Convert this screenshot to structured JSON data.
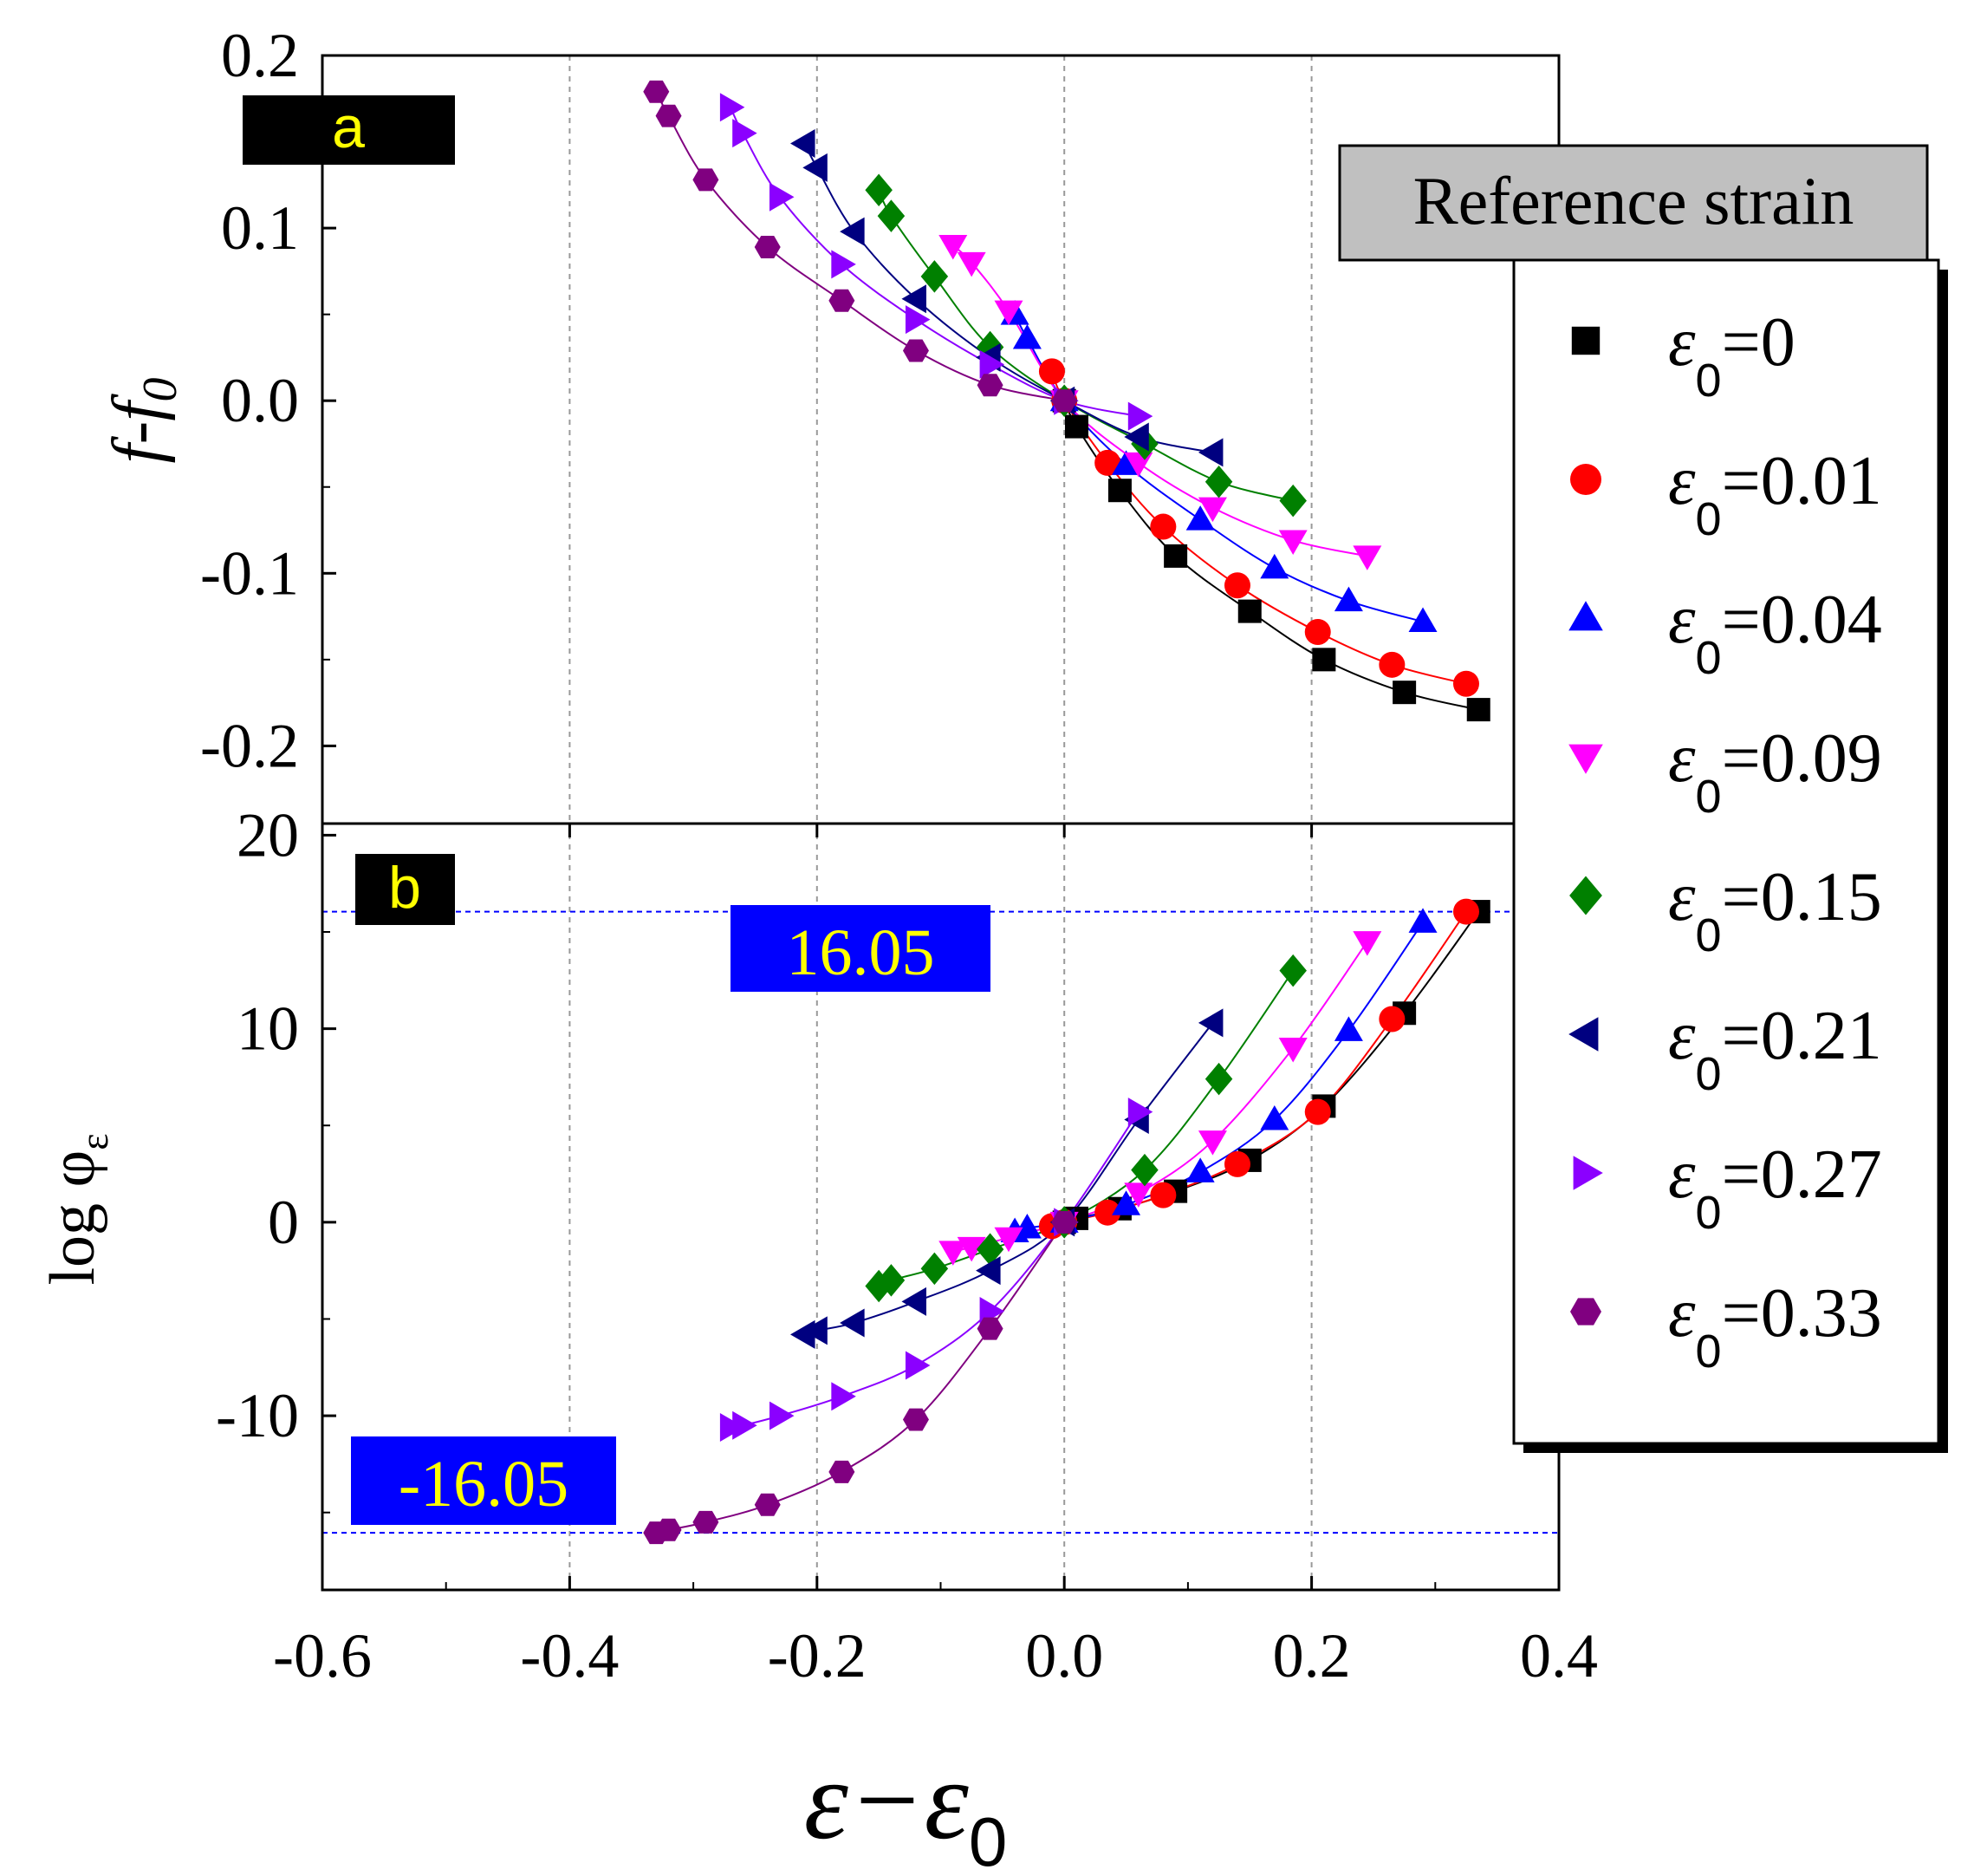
{
  "figure": {
    "xlabel_main": "ε−ε",
    "xlabel_sub": "0",
    "x_tick_labels": [
      "-0.6",
      "-0.4",
      "-0.2",
      "0.0",
      "0.2",
      "0.4"
    ],
    "legend_title": "Reference strain"
  },
  "chart_data": [
    {
      "type": "scatter",
      "panel_label": "a",
      "ylabel": "f-f0",
      "ylabel_main": "f-f",
      "ylabel_sub": "0",
      "xlabel": "ε−ε0",
      "xlim": [
        -0.6,
        0.4
      ],
      "ylim": [
        -0.245,
        0.2
      ],
      "x_ticks": [
        -0.6,
        -0.4,
        -0.2,
        0.0,
        0.2,
        0.4
      ],
      "y_ticks": [
        0.2,
        0.1,
        0.0,
        -0.1,
        -0.2
      ],
      "y_tick_labels": [
        "0.2",
        "0.1",
        "0.0",
        "-0.1",
        "-0.2"
      ],
      "grid": "vertical dashed at x = -0.4, -0.2, 0.0, 0.2",
      "series": [
        {
          "name": "ε0=0",
          "color": "#000000",
          "marker": "square",
          "points": [
            [
              0.0,
              0.0
            ],
            [
              0.01,
              -0.015
            ],
            [
              0.045,
              -0.052
            ],
            [
              0.09,
              -0.09
            ],
            [
              0.15,
              -0.122
            ],
            [
              0.21,
              -0.15
            ],
            [
              0.275,
              -0.169
            ],
            [
              0.335,
              -0.179
            ]
          ]
        },
        {
          "name": "ε0=0.01",
          "color": "#ff0000",
          "marker": "circle",
          "points": [
            [
              -0.01,
              0.017
            ],
            [
              0.0,
              0.0
            ],
            [
              0.035,
              -0.036
            ],
            [
              0.08,
              -0.073
            ],
            [
              0.14,
              -0.107
            ],
            [
              0.205,
              -0.134
            ],
            [
              0.265,
              -0.153
            ],
            [
              0.325,
              -0.164
            ]
          ]
        },
        {
          "name": "ε0=0.04",
          "color": "#0000ff",
          "marker": "triangle-up",
          "points": [
            [
              -0.04,
              0.05
            ],
            [
              -0.03,
              0.036
            ],
            [
              0.0,
              0.0
            ],
            [
              0.05,
              -0.037
            ],
            [
              0.11,
              -0.069
            ],
            [
              0.17,
              -0.097
            ],
            [
              0.23,
              -0.116
            ],
            [
              0.29,
              -0.128
            ]
          ]
        },
        {
          "name": "ε0=0.09",
          "color": "#ff00ff",
          "marker": "triangle-down",
          "points": [
            [
              -0.09,
              0.09
            ],
            [
              -0.075,
              0.08
            ],
            [
              -0.045,
              0.052
            ],
            [
              0.0,
              0.0
            ],
            [
              0.06,
              -0.036
            ],
            [
              0.12,
              -0.062
            ],
            [
              0.185,
              -0.081
            ],
            [
              0.245,
              -0.09
            ]
          ]
        },
        {
          "name": "ε0=0.15",
          "color": "#008000",
          "marker": "diamond",
          "points": [
            [
              -0.15,
              0.122
            ],
            [
              -0.14,
              0.107
            ],
            [
              -0.105,
              0.072
            ],
            [
              -0.06,
              0.031
            ],
            [
              0.0,
              0.0
            ],
            [
              0.065,
              -0.025
            ],
            [
              0.125,
              -0.047
            ],
            [
              0.185,
              -0.058
            ]
          ]
        },
        {
          "name": "ε0=0.21",
          "color": "#000080",
          "marker": "triangle-left",
          "points": [
            [
              -0.21,
              0.149
            ],
            [
              -0.2,
              0.135
            ],
            [
              -0.17,
              0.098
            ],
            [
              -0.12,
              0.059
            ],
            [
              -0.06,
              0.025
            ],
            [
              0.0,
              0.0
            ],
            [
              0.06,
              -0.021
            ],
            [
              0.12,
              -0.03
            ]
          ]
        },
        {
          "name": "ε0=0.27",
          "color": "#8b00ff",
          "marker": "triangle-right",
          "points": [
            [
              -0.27,
              0.17
            ],
            [
              -0.26,
              0.155
            ],
            [
              -0.23,
              0.118
            ],
            [
              -0.18,
              0.079
            ],
            [
              -0.12,
              0.047
            ],
            [
              -0.06,
              0.021
            ],
            [
              0.0,
              0.0
            ],
            [
              0.06,
              -0.009
            ]
          ]
        },
        {
          "name": "ε0=0.33",
          "color": "#800080",
          "marker": "hexagon",
          "points": [
            [
              -0.33,
              0.179
            ],
            [
              -0.32,
              0.165
            ],
            [
              -0.29,
              0.128
            ],
            [
              -0.24,
              0.089
            ],
            [
              -0.18,
              0.058
            ],
            [
              -0.12,
              0.029
            ],
            [
              -0.06,
              0.009
            ],
            [
              0.0,
              0.0
            ]
          ]
        }
      ]
    },
    {
      "type": "scatter",
      "panel_label": "b",
      "ylabel": "log φε",
      "ylabel_main": "log  φ",
      "ylabel_sub": "ε",
      "xlabel": "ε−ε0",
      "xlim": [
        -0.6,
        0.4
      ],
      "ylim": [
        -19,
        20.6
      ],
      "x_ticks": [
        -0.6,
        -0.4,
        -0.2,
        0.0,
        0.2,
        0.4
      ],
      "y_ticks": [
        20,
        10,
        0,
        -10
      ],
      "y_tick_labels": [
        "20",
        "10",
        "0",
        "-10"
      ],
      "grid": "vertical dashed at x = -0.4, -0.2, 0.0, 0.2",
      "annotations": [
        {
          "text": "16.05",
          "y": 16.05
        },
        {
          "text": "-16.05",
          "y": -16.05
        }
      ],
      "series": [
        {
          "name": "ε0=0",
          "color": "#000000",
          "marker": "square",
          "points": [
            [
              0.0,
              0.0
            ],
            [
              0.01,
              0.2
            ],
            [
              0.045,
              0.7
            ],
            [
              0.09,
              1.6
            ],
            [
              0.15,
              3.2
            ],
            [
              0.21,
              6.0
            ],
            [
              0.275,
              10.8
            ],
            [
              0.335,
              16.05
            ]
          ]
        },
        {
          "name": "ε0=0.01",
          "color": "#ff0000",
          "marker": "circle",
          "points": [
            [
              -0.01,
              -0.2
            ],
            [
              0.0,
              0.0
            ],
            [
              0.035,
              0.5
            ],
            [
              0.08,
              1.4
            ],
            [
              0.14,
              3.0
            ],
            [
              0.205,
              5.7
            ],
            [
              0.265,
              10.5
            ],
            [
              0.325,
              16.05
            ]
          ]
        },
        {
          "name": "ε0=0.04",
          "color": "#0000ff",
          "marker": "triangle-up",
          "points": [
            [
              -0.04,
              -0.5
            ],
            [
              -0.03,
              -0.3
            ],
            [
              0.0,
              0.0
            ],
            [
              0.05,
              0.9
            ],
            [
              0.11,
              2.6
            ],
            [
              0.17,
              5.3
            ],
            [
              0.23,
              9.9
            ],
            [
              0.29,
              15.5
            ]
          ]
        },
        {
          "name": "ε0=0.09",
          "color": "#ff00ff",
          "marker": "triangle-down",
          "points": [
            [
              -0.09,
              -1.5
            ],
            [
              -0.075,
              -1.3
            ],
            [
              -0.045,
              -0.8
            ],
            [
              0.0,
              0.0
            ],
            [
              0.06,
              1.5
            ],
            [
              0.12,
              4.2
            ],
            [
              0.185,
              9.0
            ],
            [
              0.245,
              14.5
            ]
          ]
        },
        {
          "name": "ε0=0.15",
          "color": "#008000",
          "marker": "diamond",
          "points": [
            [
              -0.15,
              -3.3
            ],
            [
              -0.14,
              -3.0
            ],
            [
              -0.105,
              -2.4
            ],
            [
              -0.06,
              -1.4
            ],
            [
              0.0,
              0.0
            ],
            [
              0.065,
              2.7
            ],
            [
              0.125,
              7.4
            ],
            [
              0.185,
              13.0
            ]
          ]
        },
        {
          "name": "ε0=0.21",
          "color": "#000080",
          "marker": "triangle-left",
          "points": [
            [
              -0.21,
              -5.8
            ],
            [
              -0.2,
              -5.6
            ],
            [
              -0.17,
              -5.2
            ],
            [
              -0.12,
              -4.1
            ],
            [
              -0.06,
              -2.5
            ],
            [
              0.0,
              0.0
            ],
            [
              0.06,
              5.3
            ],
            [
              0.12,
              10.3
            ]
          ]
        },
        {
          "name": "ε0=0.27",
          "color": "#8b00ff",
          "marker": "triangle-right",
          "points": [
            [
              -0.27,
              -10.6
            ],
            [
              -0.26,
              -10.5
            ],
            [
              -0.23,
              -10.0
            ],
            [
              -0.18,
              -9.0
            ],
            [
              -0.12,
              -7.4
            ],
            [
              -0.06,
              -4.6
            ],
            [
              0.0,
              0.0
            ],
            [
              0.06,
              5.7
            ]
          ]
        },
        {
          "name": "ε0=0.33",
          "color": "#800080",
          "marker": "hexagon",
          "points": [
            [
              -0.33,
              -16.05
            ],
            [
              -0.32,
              -15.9
            ],
            [
              -0.29,
              -15.5
            ],
            [
              -0.24,
              -14.6
            ],
            [
              -0.18,
              -12.9
            ],
            [
              -0.12,
              -10.2
            ],
            [
              -0.06,
              -5.5
            ],
            [
              0.0,
              0.0
            ]
          ]
        }
      ]
    }
  ],
  "legend": {
    "title": "Reference strain",
    "entries": [
      {
        "main": "ε",
        "sub": "0",
        "value": "=0",
        "marker": "square",
        "color": "#000000"
      },
      {
        "main": "ε",
        "sub": "0",
        "value": "=0.01",
        "marker": "circle",
        "color": "#ff0000"
      },
      {
        "main": "ε",
        "sub": "0",
        "value": "=0.04",
        "marker": "triangle-up",
        "color": "#0000ff"
      },
      {
        "main": "ε",
        "sub": "0",
        "value": "=0.09",
        "marker": "triangle-down",
        "color": "#ff00ff"
      },
      {
        "main": "ε",
        "sub": "0",
        "value": "=0.15",
        "marker": "diamond",
        "color": "#008000"
      },
      {
        "main": "ε",
        "sub": "0",
        "value": "=0.21",
        "marker": "triangle-left",
        "color": "#000080"
      },
      {
        "main": "ε",
        "sub": "0",
        "value": "=0.27",
        "marker": "triangle-right",
        "color": "#8b00ff"
      },
      {
        "main": "ε",
        "sub": "0",
        "value": "=0.33",
        "marker": "hexagon",
        "color": "#800080"
      }
    ]
  },
  "colors": {
    "annotation_bg": "#0000ff",
    "annotation_text": "#ffff00",
    "panel_label_bg": "#000000",
    "panel_label_text": "#ffff00",
    "legend_title_bg": "#c0c0c0",
    "reference_line": "#0000ff",
    "grid": "#999999"
  }
}
